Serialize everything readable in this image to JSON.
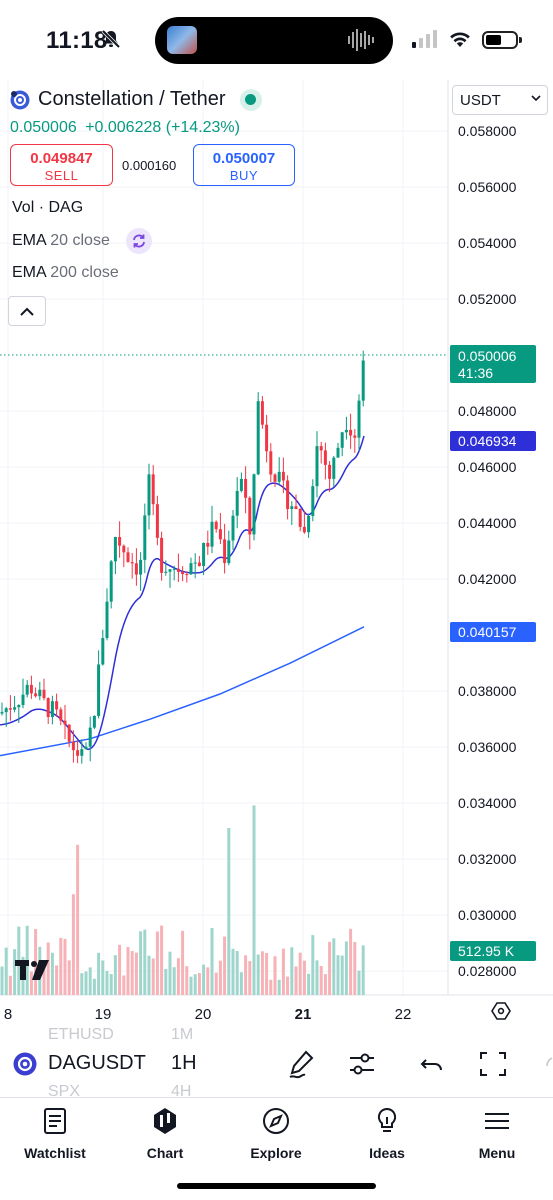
{
  "status_bar": {
    "time": "11:18"
  },
  "symbol": {
    "name": "Constellation / Tether",
    "last": "0.050006",
    "change": "+0.006228",
    "change_pct": "(+14.23%)",
    "sell_price": "0.049847",
    "sell_label": "SELL",
    "spread": "0.000160",
    "buy_price": "0.050007",
    "buy_label": "BUY",
    "currency": "USDT"
  },
  "indicators": {
    "vol": "Vol · DAG",
    "ema20_name": "EMA",
    "ema20_params": "20 close",
    "ema200_name": "EMA",
    "ema200_params": "200 close"
  },
  "price_scale": {
    "ticks": [
      "0.058000",
      "0.056000",
      "0.054000",
      "0.052000",
      "0.048000",
      "0.046000",
      "0.044000",
      "0.042000",
      "0.038000",
      "0.036000",
      "0.034000",
      "0.032000",
      "0.030000",
      "0.028000"
    ],
    "last_price": "0.050006",
    "countdown": "41:36",
    "ema20_value": "0.046934",
    "ema200_value": "0.040157",
    "volume_value": "512.95 K"
  },
  "time_scale": {
    "ticks": [
      "8",
      "19",
      "20",
      "21",
      "22"
    ]
  },
  "colors": {
    "up": "#089981",
    "down": "#f23645",
    "ema20": "#2f2fd8",
    "ema200": "#2962ff",
    "accent": "#2962ff"
  },
  "toolbar": {
    "symbol": "DAGUSDT",
    "interval": "1H",
    "ghost_symbol_above": "ETHUSD",
    "ghost_interval_above": "1M",
    "ghost_symbol_below": "SPX",
    "ghost_interval_below": "4H"
  },
  "nav": {
    "watchlist": "Watchlist",
    "chart": "Chart",
    "explore": "Explore",
    "ideas": "Ideas",
    "menu": "Menu"
  }
}
